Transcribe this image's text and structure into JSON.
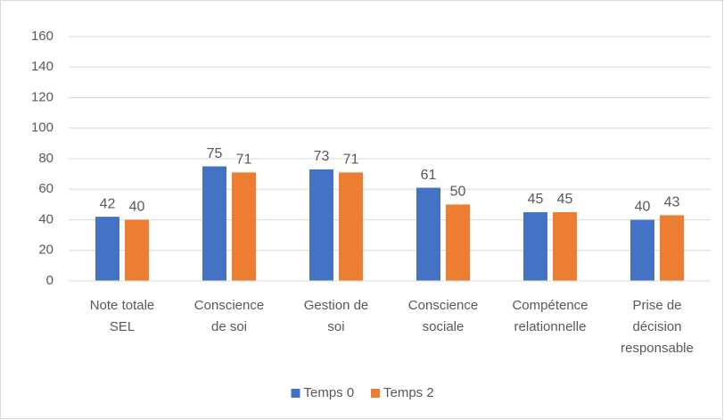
{
  "chart_data": {
    "type": "bar",
    "categories": [
      [
        "Note totale",
        "SEL"
      ],
      [
        "Conscience",
        "de soi"
      ],
      [
        "Gestion de",
        "soi"
      ],
      [
        "Conscience",
        "sociale"
      ],
      [
        "Compétence",
        "relationnelle"
      ],
      [
        "Prise de",
        "décision",
        "responsable"
      ]
    ],
    "series": [
      {
        "name": "Temps 0",
        "color": "#4472c4",
        "values": [
          42,
          75,
          73,
          61,
          45,
          40
        ]
      },
      {
        "name": "Temps 2",
        "color": "#ed7d31",
        "values": [
          40,
          71,
          71,
          50,
          45,
          43
        ]
      }
    ],
    "ylim": [
      0,
      160
    ],
    "yticks": [
      0,
      20,
      40,
      60,
      80,
      100,
      120,
      140,
      160
    ],
    "grid": true,
    "legend": "bottom"
  }
}
